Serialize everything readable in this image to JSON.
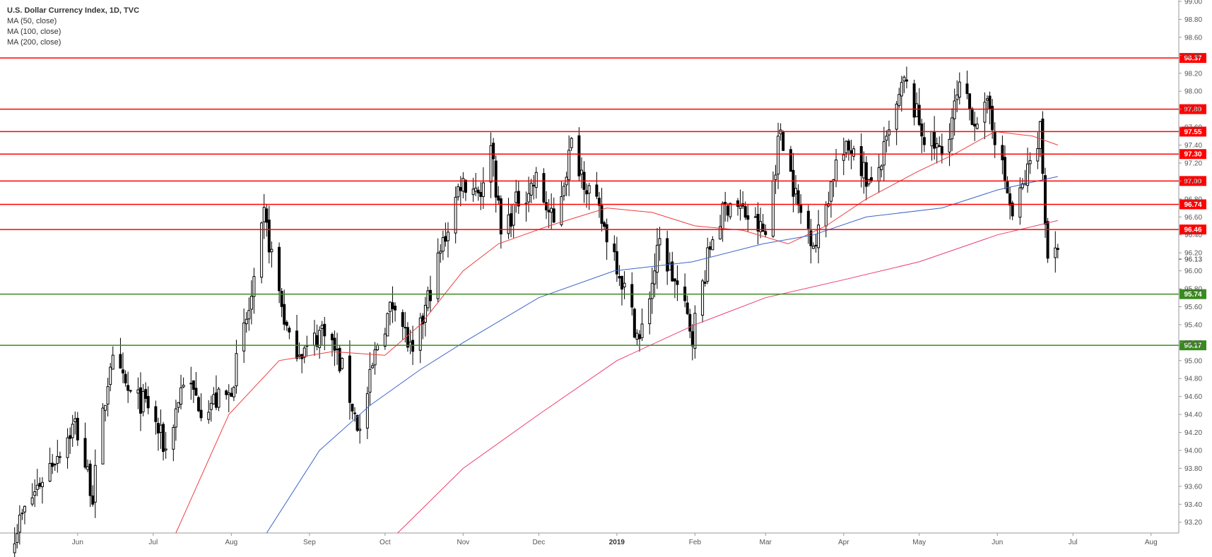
{
  "legend": {
    "title": "U.S. Dollar Currency Index, 1D, TVC",
    "ma50": "MA (50, close)",
    "ma100": "MA (100, close)",
    "ma200": "MA (200, close)"
  },
  "colors": {
    "resistance": "#ff0000",
    "support": "#3a8a1f",
    "ma50": "#f03c3c",
    "ma100": "#3c64c8",
    "ma200": "#ee3d6e",
    "candle_up": "#ffffff",
    "candle_down": "#000000"
  },
  "chart_data": {
    "type": "candlestick",
    "title": "U.S. Dollar Currency Index, 1D, TVC",
    "ylim": [
      93.08,
      99.0
    ],
    "y_ticks": [
      "93.20",
      "93.40",
      "93.60",
      "93.80",
      "94.00",
      "94.20",
      "94.40",
      "94.60",
      "94.80",
      "95.00",
      "95.20",
      "95.40",
      "95.60",
      "95.80",
      "96.00",
      "96.20",
      "96.40",
      "96.60",
      "96.80",
      "97.00",
      "97.20",
      "97.40",
      "97.60",
      "97.80",
      "98.00",
      "98.20",
      "98.40",
      "98.60",
      "98.80",
      "99.00"
    ],
    "x_ticks": [
      {
        "label": "Jun",
        "date": "2018-06-01"
      },
      {
        "label": "Jul",
        "date": "2018-07-01"
      },
      {
        "label": "Aug",
        "date": "2018-08-01"
      },
      {
        "label": "Sep",
        "date": "2018-09-01"
      },
      {
        "label": "Oct",
        "date": "2018-10-01"
      },
      {
        "label": "Nov",
        "date": "2018-11-01"
      },
      {
        "label": "Dec",
        "date": "2018-12-01"
      },
      {
        "label": "2019",
        "date": "2019-01-01"
      },
      {
        "label": "Feb",
        "date": "2019-02-01"
      },
      {
        "label": "Mar",
        "date": "2019-03-01"
      },
      {
        "label": "Apr",
        "date": "2019-04-01"
      },
      {
        "label": "May",
        "date": "2019-05-01"
      },
      {
        "label": "Jun",
        "date": "2019-06-01"
      },
      {
        "label": "Jul",
        "date": "2019-07-01"
      },
      {
        "label": "Aug",
        "date": "2019-08-01"
      }
    ],
    "x_range": [
      "2018-05-04",
      "2019-08-12"
    ],
    "resistance_levels": [
      98.37,
      97.8,
      97.55,
      97.3,
      97.0,
      96.74,
      96.46
    ],
    "support_levels": [
      95.74,
      95.17
    ],
    "level_labels": [
      "98.37",
      "97.80",
      "97.55",
      "97.30",
      "97.00",
      "96.74",
      "96.46",
      "95.74",
      "95.17"
    ],
    "last_price": 96.13,
    "last_price_label": "96.13",
    "ohlc_anchors": [
      [
        "2018-05-07",
        93.1
      ],
      [
        "2018-05-18",
        93.7
      ],
      [
        "2018-05-31",
        94.3
      ],
      [
        "2018-06-07",
        93.5
      ],
      [
        "2018-06-14",
        95.0
      ],
      [
        "2018-06-22",
        94.6
      ],
      [
        "2018-06-29",
        94.5
      ],
      [
        "2018-07-06",
        94.0
      ],
      [
        "2018-07-13",
        94.8
      ],
      [
        "2018-07-20",
        94.5
      ],
      [
        "2018-07-31",
        94.6
      ],
      [
        "2018-08-10",
        95.8
      ],
      [
        "2018-08-14",
        96.6
      ],
      [
        "2018-08-24",
        95.2
      ],
      [
        "2018-08-31",
        95.1
      ],
      [
        "2018-09-07",
        95.4
      ],
      [
        "2018-09-14",
        94.9
      ],
      [
        "2018-09-21",
        94.2
      ],
      [
        "2018-09-28",
        95.2
      ],
      [
        "2018-10-05",
        95.7
      ],
      [
        "2018-10-12",
        95.0
      ],
      [
        "2018-10-19",
        95.8
      ],
      [
        "2018-10-31",
        97.0
      ],
      [
        "2018-11-09",
        96.9
      ],
      [
        "2018-11-12",
        97.5
      ],
      [
        "2018-11-16",
        96.4
      ],
      [
        "2018-11-23",
        96.8
      ],
      [
        "2018-11-30",
        97.0
      ],
      [
        "2018-12-07",
        96.5
      ],
      [
        "2018-12-14",
        97.4
      ],
      [
        "2018-12-21",
        96.9
      ],
      [
        "2018-12-31",
        96.2
      ],
      [
        "2019-01-04",
        95.8
      ],
      [
        "2019-01-10",
        95.2
      ],
      [
        "2019-01-18",
        96.3
      ],
      [
        "2019-01-25",
        95.8
      ],
      [
        "2019-01-31",
        95.3
      ],
      [
        "2019-02-08",
        96.4
      ],
      [
        "2019-02-15",
        96.8
      ],
      [
        "2019-02-22",
        96.6
      ],
      [
        "2019-03-01",
        96.4
      ],
      [
        "2019-03-07",
        97.6
      ],
      [
        "2019-03-14",
        96.7
      ],
      [
        "2019-03-21",
        96.3
      ],
      [
        "2019-03-29",
        97.2
      ],
      [
        "2019-04-05",
        97.4
      ],
      [
        "2019-04-12",
        96.9
      ],
      [
        "2019-04-18",
        97.4
      ],
      [
        "2019-04-25",
        98.1
      ],
      [
        "2019-05-03",
        97.5
      ],
      [
        "2019-05-10",
        97.3
      ],
      [
        "2019-05-17",
        98.0
      ],
      [
        "2019-05-23",
        97.7
      ],
      [
        "2019-05-29",
        97.8
      ],
      [
        "2019-06-04",
        97.0
      ],
      [
        "2019-06-07",
        96.6
      ],
      [
        "2019-06-12",
        97.0
      ],
      [
        "2019-06-18",
        97.6
      ],
      [
        "2019-06-20",
        96.6
      ],
      [
        "2019-06-21",
        96.2
      ],
      [
        "2019-06-25",
        96.13
      ]
    ],
    "ma50": [
      [
        "2018-07-10",
        93.08
      ],
      [
        "2018-07-31",
        94.4
      ],
      [
        "2018-08-20",
        95.0
      ],
      [
        "2018-09-10",
        95.1
      ],
      [
        "2018-10-01",
        95.06
      ],
      [
        "2018-10-15",
        95.4
      ],
      [
        "2018-11-01",
        96.0
      ],
      [
        "2018-11-15",
        96.3
      ],
      [
        "2018-12-05",
        96.5
      ],
      [
        "2018-12-28",
        96.7
      ],
      [
        "2019-01-15",
        96.65
      ],
      [
        "2019-02-01",
        96.5
      ],
      [
        "2019-02-20",
        96.45
      ],
      [
        "2019-03-10",
        96.3
      ],
      [
        "2019-03-25",
        96.5
      ],
      [
        "2019-04-10",
        96.8
      ],
      [
        "2019-04-30",
        97.1
      ],
      [
        "2019-05-15",
        97.3
      ],
      [
        "2019-05-31",
        97.55
      ],
      [
        "2019-06-15",
        97.5
      ],
      [
        "2019-06-25",
        97.4
      ]
    ],
    "ma100": [
      [
        "2018-08-15",
        93.08
      ],
      [
        "2018-09-05",
        94.0
      ],
      [
        "2018-09-25",
        94.5
      ],
      [
        "2018-10-15",
        94.9
      ],
      [
        "2018-11-01",
        95.2
      ],
      [
        "2018-12-01",
        95.7
      ],
      [
        "2018-12-31",
        96.0
      ],
      [
        "2019-01-31",
        96.1
      ],
      [
        "2019-02-28",
        96.3
      ],
      [
        "2019-03-20",
        96.4
      ],
      [
        "2019-04-10",
        96.6
      ],
      [
        "2019-05-10",
        96.7
      ],
      [
        "2019-06-01",
        96.9
      ],
      [
        "2019-06-25",
        97.05
      ]
    ],
    "ma200": [
      [
        "2018-10-06",
        93.08
      ],
      [
        "2018-11-01",
        93.8
      ],
      [
        "2018-12-01",
        94.4
      ],
      [
        "2019-01-01",
        95.0
      ],
      [
        "2019-02-01",
        95.4
      ],
      [
        "2019-03-01",
        95.7
      ],
      [
        "2019-04-01",
        95.9
      ],
      [
        "2019-05-01",
        96.1
      ],
      [
        "2019-06-01",
        96.4
      ],
      [
        "2019-06-25",
        96.56
      ]
    ]
  }
}
